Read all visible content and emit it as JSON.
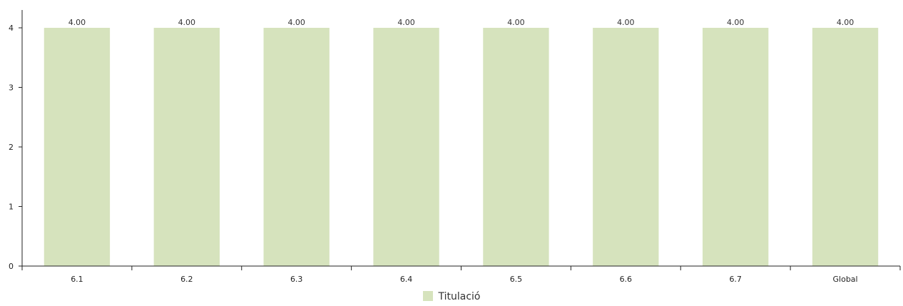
{
  "chart_data": {
    "type": "bar",
    "categories": [
      "6.1",
      "6.2",
      "6.3",
      "6.4",
      "6.5",
      "6.6",
      "6.7",
      "Global"
    ],
    "series": [
      {
        "name": "Titulació",
        "values": [
          4.0,
          4.0,
          4.0,
          4.0,
          4.0,
          4.0,
          4.0,
          4.0
        ]
      }
    ],
    "data_labels": [
      "4.00",
      "4.00",
      "4.00",
      "4.00",
      "4.00",
      "4.00",
      "4.00",
      "4.00"
    ],
    "y_ticks": [
      "0",
      "1",
      "2",
      "3",
      "4"
    ],
    "ylim": [
      0,
      4.3
    ],
    "grid": false,
    "legend": "bottom-center",
    "colors": {
      "bar": "#d6e3bd",
      "axis": "#222222"
    }
  },
  "legend": {
    "label": "Titulació"
  }
}
